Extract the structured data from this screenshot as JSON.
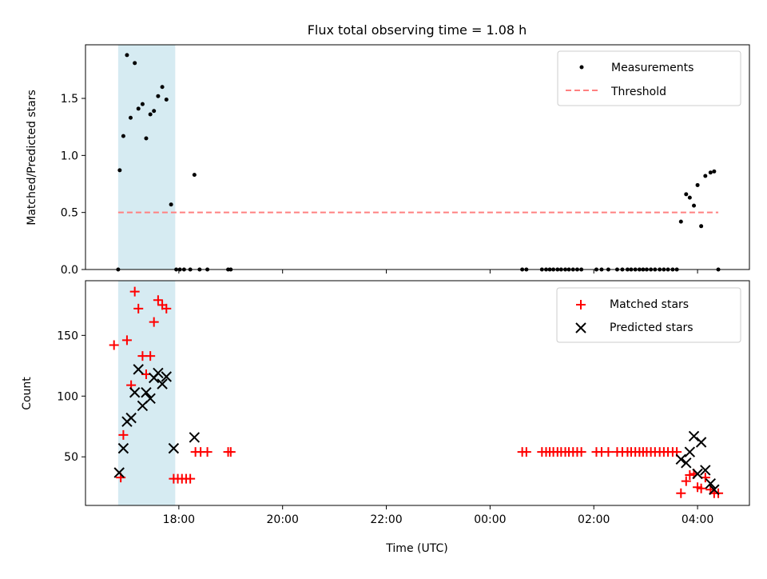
{
  "colors": {
    "measurement": "#000000",
    "threshold": "#ff8080",
    "matched": "#ff0000",
    "predicted": "#000000",
    "shade": "#add8e6"
  },
  "chart_data": [
    {
      "type": "scatter",
      "title": "Flux total observing time = 1.08 h",
      "xlabel": "",
      "ylabel": "Matched/Predicted stars",
      "xlim": [
        16.2,
        29.0
      ],
      "ylim": [
        0,
        1.97
      ],
      "x_ticks": [
        18,
        20,
        22,
        24,
        26,
        28
      ],
      "x_tick_labels": [],
      "y_ticks": [
        0.0,
        0.5,
        1.0,
        1.5
      ],
      "y_tick_labels": [
        "0.0",
        "0.5",
        "1.0",
        "1.5"
      ],
      "shaded_span": [
        16.83,
        17.93
      ],
      "legend": {
        "position": "top-right",
        "entries": [
          "Measurements",
          "Threshold"
        ]
      },
      "threshold": {
        "name": "Threshold",
        "x": [
          16.83,
          28.4
        ],
        "y": 0.5
      },
      "series": [
        {
          "name": "Measurements",
          "points": [
            [
              16.83,
              0.0
            ],
            [
              16.86,
              0.87
            ],
            [
              16.93,
              1.17
            ],
            [
              17.0,
              1.88
            ],
            [
              17.07,
              1.33
            ],
            [
              17.15,
              1.81
            ],
            [
              17.22,
              1.41
            ],
            [
              17.3,
              1.45
            ],
            [
              17.37,
              1.15
            ],
            [
              17.45,
              1.36
            ],
            [
              17.52,
              1.39
            ],
            [
              17.6,
              1.52
            ],
            [
              17.68,
              1.6
            ],
            [
              17.76,
              1.49
            ],
            [
              17.85,
              0.57
            ],
            [
              17.95,
              0.0
            ],
            [
              18.02,
              0.0
            ],
            [
              18.1,
              0.0
            ],
            [
              18.22,
              0.0
            ],
            [
              18.3,
              0.83
            ],
            [
              18.4,
              0.0
            ],
            [
              18.55,
              0.0
            ],
            [
              18.95,
              0.0
            ],
            [
              19.0,
              0.0
            ],
            [
              24.62,
              0.0
            ],
            [
              24.7,
              0.0
            ],
            [
              25.0,
              0.0
            ],
            [
              25.08,
              0.0
            ],
            [
              25.15,
              0.0
            ],
            [
              25.22,
              0.0
            ],
            [
              25.3,
              0.0
            ],
            [
              25.37,
              0.0
            ],
            [
              25.45,
              0.0
            ],
            [
              25.52,
              0.0
            ],
            [
              25.6,
              0.0
            ],
            [
              25.68,
              0.0
            ],
            [
              25.76,
              0.0
            ],
            [
              26.05,
              0.0
            ],
            [
              26.15,
              0.0
            ],
            [
              26.28,
              0.0
            ],
            [
              26.45,
              0.0
            ],
            [
              26.55,
              0.0
            ],
            [
              26.65,
              0.0
            ],
            [
              26.72,
              0.0
            ],
            [
              26.8,
              0.0
            ],
            [
              26.88,
              0.0
            ],
            [
              26.95,
              0.0
            ],
            [
              27.02,
              0.0
            ],
            [
              27.1,
              0.0
            ],
            [
              27.18,
              0.0
            ],
            [
              27.27,
              0.0
            ],
            [
              27.35,
              0.0
            ],
            [
              27.43,
              0.0
            ],
            [
              27.52,
              0.0
            ],
            [
              27.6,
              0.0
            ],
            [
              27.68,
              0.42
            ],
            [
              27.78,
              0.66
            ],
            [
              27.85,
              0.63
            ],
            [
              27.93,
              0.56
            ],
            [
              28.0,
              0.74
            ],
            [
              28.07,
              0.38
            ],
            [
              28.15,
              0.82
            ],
            [
              28.25,
              0.85
            ],
            [
              28.32,
              0.86
            ],
            [
              28.4,
              0.0
            ]
          ]
        }
      ]
    },
    {
      "type": "scatter",
      "title": "",
      "xlabel": "Time (UTC)",
      "ylabel": "Count",
      "xlim": [
        16.2,
        29.0
      ],
      "ylim": [
        10,
        195
      ],
      "x_ticks": [
        18,
        20,
        22,
        24,
        26,
        28
      ],
      "x_tick_labels": [
        "18:00",
        "20:00",
        "22:00",
        "00:00",
        "02:00",
        "04:00"
      ],
      "y_ticks": [
        50,
        100,
        150
      ],
      "y_tick_labels": [
        "50",
        "100",
        "150"
      ],
      "shaded_span": [
        16.83,
        17.93
      ],
      "legend": {
        "position": "top-right",
        "entries": [
          "Matched stars",
          "Predicted stars"
        ]
      },
      "series": [
        {
          "name": "Matched stars",
          "marker": "+",
          "points": [
            [
              16.75,
              142
            ],
            [
              16.88,
              33
            ],
            [
              16.93,
              68
            ],
            [
              17.0,
              146
            ],
            [
              17.08,
              109
            ],
            [
              17.15,
              186
            ],
            [
              17.22,
              172
            ],
            [
              17.3,
              133
            ],
            [
              17.37,
              118
            ],
            [
              17.45,
              133
            ],
            [
              17.52,
              161
            ],
            [
              17.6,
              179
            ],
            [
              17.68,
              175
            ],
            [
              17.76,
              172
            ],
            [
              17.9,
              32
            ],
            [
              17.98,
              32
            ],
            [
              18.06,
              32
            ],
            [
              18.14,
              32
            ],
            [
              18.22,
              32
            ],
            [
              18.32,
              54
            ],
            [
              18.42,
              54
            ],
            [
              18.55,
              54
            ],
            [
              18.95,
              54
            ],
            [
              19.0,
              54
            ],
            [
              24.62,
              54
            ],
            [
              24.7,
              54
            ],
            [
              25.0,
              54
            ],
            [
              25.08,
              54
            ],
            [
              25.15,
              54
            ],
            [
              25.22,
              54
            ],
            [
              25.3,
              54
            ],
            [
              25.37,
              54
            ],
            [
              25.45,
              54
            ],
            [
              25.52,
              54
            ],
            [
              25.6,
              54
            ],
            [
              25.68,
              54
            ],
            [
              25.76,
              54
            ],
            [
              26.05,
              54
            ],
            [
              26.15,
              54
            ],
            [
              26.28,
              54
            ],
            [
              26.45,
              54
            ],
            [
              26.55,
              54
            ],
            [
              26.65,
              54
            ],
            [
              26.72,
              54
            ],
            [
              26.8,
              54
            ],
            [
              26.88,
              54
            ],
            [
              26.95,
              54
            ],
            [
              27.02,
              54
            ],
            [
              27.1,
              54
            ],
            [
              27.18,
              54
            ],
            [
              27.27,
              54
            ],
            [
              27.35,
              54
            ],
            [
              27.43,
              54
            ],
            [
              27.52,
              54
            ],
            [
              27.6,
              54
            ],
            [
              27.68,
              20
            ],
            [
              27.78,
              30
            ],
            [
              27.85,
              35
            ],
            [
              27.93,
              36
            ],
            [
              28.0,
              25
            ],
            [
              28.07,
              24
            ],
            [
              28.15,
              33
            ],
            [
              28.25,
              23
            ],
            [
              28.32,
              20
            ],
            [
              28.4,
              20
            ]
          ]
        },
        {
          "name": "Predicted stars",
          "marker": "x",
          "points": [
            [
              16.85,
              37
            ],
            [
              16.93,
              57
            ],
            [
              17.0,
              79
            ],
            [
              17.08,
              82
            ],
            [
              17.15,
              103
            ],
            [
              17.22,
              122
            ],
            [
              17.3,
              92
            ],
            [
              17.37,
              103
            ],
            [
              17.45,
              98
            ],
            [
              17.52,
              115
            ],
            [
              17.6,
              119
            ],
            [
              17.68,
              110
            ],
            [
              17.76,
              116
            ],
            [
              17.9,
              57
            ],
            [
              18.3,
              66
            ],
            [
              27.68,
              48
            ],
            [
              27.78,
              45
            ],
            [
              27.85,
              54
            ],
            [
              27.93,
              67
            ],
            [
              28.0,
              36
            ],
            [
              28.07,
              62
            ],
            [
              28.15,
              39
            ],
            [
              28.25,
              28
            ],
            [
              28.32,
              23
            ]
          ]
        }
      ]
    }
  ]
}
